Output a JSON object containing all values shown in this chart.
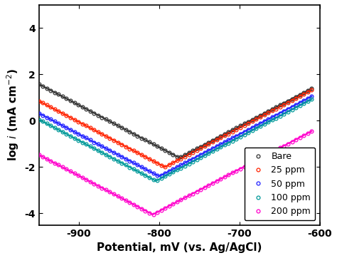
{
  "title": "",
  "xlabel": "Potential, mV (vs. Ag/AgCl)",
  "ylabel": "log $i$ (mA cm$^{-2}$)",
  "xlim": [
    -950,
    -600
  ],
  "ylim": [
    -4.5,
    5.0
  ],
  "yticks": [
    -4,
    -2,
    0,
    2,
    4
  ],
  "xticks": [
    -900,
    -800,
    -700,
    -600
  ],
  "series": [
    {
      "label": "Bare",
      "color": "#333333",
      "Ecorr": -775,
      "log_icorr": -1.6,
      "ba": 55,
      "bc": 55,
      "x_start": -950,
      "x_end": -610
    },
    {
      "label": "25 ppm",
      "color": "#ff2200",
      "Ecorr": -793,
      "log_icorr": -2.0,
      "ba": 55,
      "bc": 55,
      "x_start": -950,
      "x_end": -610
    },
    {
      "label": "50 ppm",
      "color": "#2222ff",
      "Ecorr": -800,
      "log_icorr": -2.4,
      "ba": 55,
      "bc": 55,
      "x_start": -950,
      "x_end": -610
    },
    {
      "label": "100 ppm",
      "color": "#009999",
      "Ecorr": -804,
      "log_icorr": -2.6,
      "ba": 55,
      "bc": 55,
      "x_start": -950,
      "x_end": -610
    },
    {
      "label": "200 ppm",
      "color": "#ff00cc",
      "Ecorr": -808,
      "log_icorr": -4.05,
      "ba": 55,
      "bc": 55,
      "x_start": -950,
      "x_end": -610
    }
  ],
  "background_color": "#ffffff",
  "marker": "o",
  "marker_size": 3.5,
  "linewidth": 1.4,
  "n_markers": 70,
  "legend_loc": "lower right",
  "figsize": [
    4.74,
    3.62
  ],
  "dpi": 100
}
